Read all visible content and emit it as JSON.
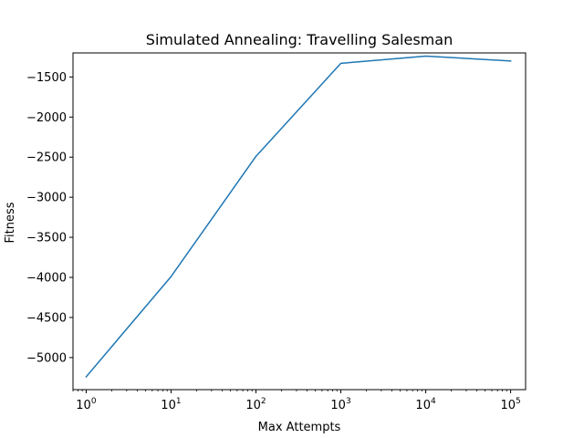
{
  "chart_data": {
    "type": "line",
    "title": "Simulated Annealing: Travelling Salesman",
    "xlabel": "Max Attempts",
    "ylabel": "Fitness",
    "x_scale": "log",
    "x_base": 10,
    "xlim": [
      0.7,
      150000
    ],
    "ylim": [
      -5400,
      -1200
    ],
    "x_ticks": [
      1,
      10,
      100,
      1000,
      10000,
      100000
    ],
    "x_tick_labels": [
      {
        "base": "10",
        "exp": "0"
      },
      {
        "base": "10",
        "exp": "1"
      },
      {
        "base": "10",
        "exp": "2"
      },
      {
        "base": "10",
        "exp": "3"
      },
      {
        "base": "10",
        "exp": "4"
      },
      {
        "base": "10",
        "exp": "5"
      }
    ],
    "y_ticks": [
      -5000,
      -4500,
      -4000,
      -3500,
      -3000,
      -2500,
      -2000,
      -1500
    ],
    "y_tick_labels": [
      "−5000",
      "−4500",
      "−4000",
      "−3500",
      "−3000",
      "−2500",
      "−2000",
      "−1500"
    ],
    "grid": false,
    "legend": false,
    "series": [
      {
        "color": "#1f77b4",
        "x": [
          1,
          10,
          100,
          1000,
          10000,
          100000
        ],
        "y": [
          -5240,
          -3990,
          -2490,
          -1330,
          -1240,
          -1300
        ]
      }
    ]
  }
}
